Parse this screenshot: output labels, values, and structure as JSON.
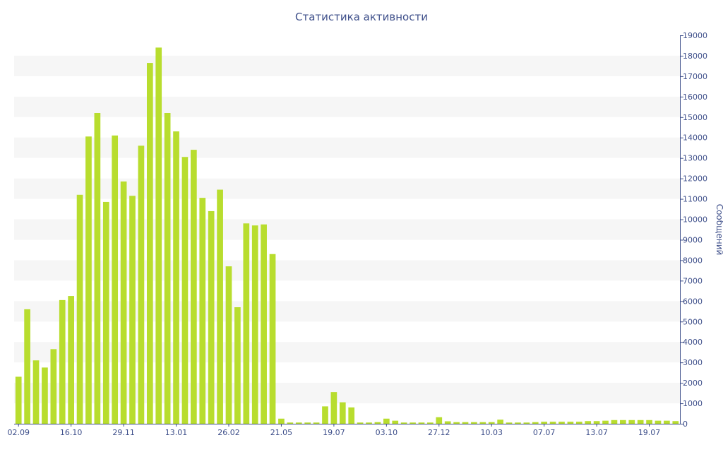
{
  "chart_data": {
    "type": "bar",
    "title": "Статистика активности",
    "ylabel": "Сообщений",
    "ylim": [
      0,
      19000
    ],
    "yticks": [
      0,
      1000,
      2000,
      3000,
      4000,
      5000,
      6000,
      7000,
      8000,
      9000,
      10000,
      11000,
      12000,
      13000,
      14000,
      15000,
      16000,
      17000,
      18000,
      19000
    ],
    "y_axis_position": "right",
    "grid": true,
    "xtick_labels": [
      {
        "index": 0,
        "label": "02.09"
      },
      {
        "index": 6,
        "label": "16.10"
      },
      {
        "index": 12,
        "label": "29.11"
      },
      {
        "index": 18,
        "label": "13.01"
      },
      {
        "index": 24,
        "label": "26.02"
      },
      {
        "index": 30,
        "label": "21.05"
      },
      {
        "index": 36,
        "label": "19.07"
      },
      {
        "index": 42,
        "label": "03.10"
      },
      {
        "index": 48,
        "label": "27.12"
      },
      {
        "index": 54,
        "label": "10.03"
      },
      {
        "index": 60,
        "label": "07.07"
      },
      {
        "index": 66,
        "label": "13.07"
      },
      {
        "index": 72,
        "label": "19.07"
      }
    ],
    "values": [
      2300,
      5600,
      3100,
      2750,
      3650,
      6050,
      6250,
      11200,
      14050,
      15200,
      10850,
      14100,
      11850,
      11150,
      13600,
      17650,
      18400,
      15200,
      14300,
      13050,
      13400,
      11050,
      10400,
      11450,
      7700,
      5700,
      9800,
      9700,
      9750,
      8300,
      250,
      60,
      60,
      60,
      60,
      850,
      1550,
      1050,
      800,
      60,
      60,
      80,
      250,
      150,
      60,
      60,
      60,
      60,
      320,
      120,
      80,
      80,
      80,
      80,
      80,
      200,
      60,
      60,
      60,
      80,
      100,
      100,
      100,
      100,
      100,
      130,
      130,
      150,
      180,
      180,
      180,
      180,
      180,
      150,
      150,
      130
    ]
  },
  "colors": {
    "bar": "#b8dd2e",
    "text": "#3e4f8a",
    "band": "#f6f6f6",
    "axis": "#3e4f8a"
  }
}
